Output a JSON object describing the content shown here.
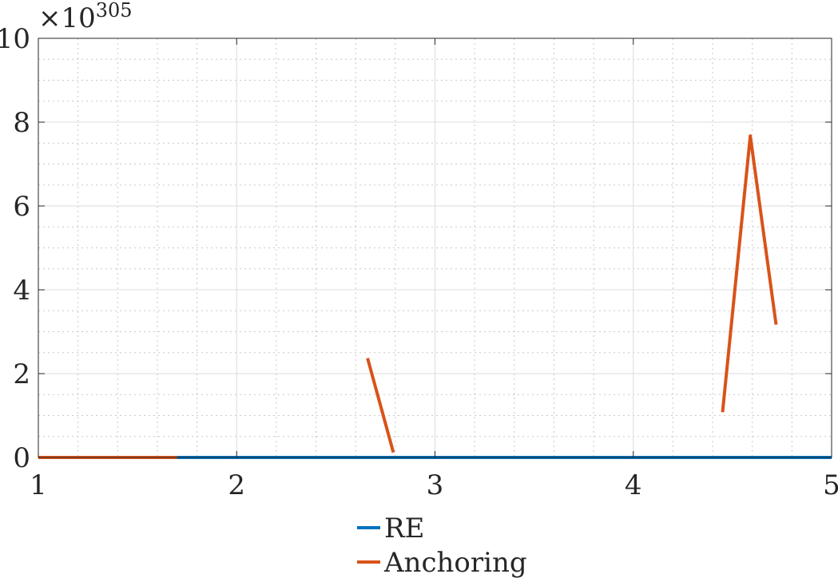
{
  "chart_data": {
    "type": "line",
    "x_ticks": [
      1,
      2,
      3,
      4,
      5
    ],
    "y_ticks": [
      0,
      2,
      4,
      6,
      8,
      10
    ],
    "xlim": [
      1,
      5
    ],
    "ylim": [
      0,
      10
    ],
    "y_exponent": {
      "base": "×10",
      "power": "305"
    },
    "grid": true,
    "minor_grid": true,
    "legend_placement": "bottom-center",
    "series": [
      {
        "name": "RE",
        "color": "#0072BD",
        "segments": [
          [
            [
              1.0,
              0.0
            ],
            [
              5.0,
              0.0
            ]
          ]
        ]
      },
      {
        "name": "Anchoring",
        "color": "#D95319",
        "segments": [
          [
            [
              1.0,
              0.0
            ],
            [
              1.7,
              0.0
            ]
          ],
          [
            [
              2.66,
              2.37
            ],
            [
              2.79,
              0.12
            ]
          ],
          [
            [
              4.45,
              1.08
            ],
            [
              4.59,
              7.67
            ],
            [
              4.72,
              3.17
            ]
          ]
        ]
      }
    ]
  }
}
